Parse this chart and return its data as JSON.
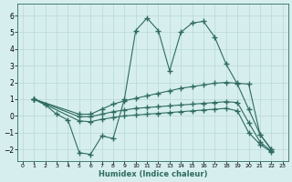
{
  "xlabel": "Humidex (Indice chaleur)",
  "background_color": "#d6eeee",
  "line_color": "#2e6b60",
  "grid_color": "#b8d8d8",
  "xlim": [
    -0.5,
    23.5
  ],
  "ylim": [
    -2.7,
    6.7
  ],
  "xticks": [
    0,
    1,
    2,
    3,
    4,
    5,
    6,
    7,
    8,
    9,
    10,
    11,
    12,
    13,
    14,
    15,
    16,
    17,
    18,
    19,
    20,
    21,
    22,
    23
  ],
  "yticks": [
    -2,
    -1,
    0,
    1,
    2,
    3,
    4,
    5,
    6
  ],
  "line1_x": [
    1,
    2,
    3,
    4,
    5,
    6,
    7,
    8,
    9,
    10,
    11,
    12,
    13,
    14,
    15,
    16,
    17,
    18,
    19,
    20,
    21,
    22
  ],
  "line1_y": [
    1.0,
    0.65,
    0.1,
    -0.25,
    -2.2,
    -2.3,
    -1.2,
    -1.35,
    1.0,
    5.1,
    5.85,
    5.1,
    2.7,
    5.0,
    5.55,
    5.65,
    4.7,
    3.1,
    1.9,
    0.4,
    -1.1,
    -2.0
  ],
  "line2_x": [
    1,
    5,
    6,
    7,
    8,
    9,
    10,
    11,
    12,
    13,
    14,
    15,
    16,
    17,
    18,
    19,
    20,
    21,
    22
  ],
  "line2_y": [
    1.0,
    0.1,
    0.1,
    0.4,
    0.7,
    0.9,
    1.05,
    1.2,
    1.35,
    1.5,
    1.65,
    1.75,
    1.85,
    1.95,
    2.0,
    1.95,
    1.9,
    -1.1,
    -2.0
  ],
  "line3_x": [
    1,
    5,
    6,
    7,
    8,
    9,
    10,
    11,
    12,
    13,
    14,
    15,
    16,
    17,
    18,
    19,
    20,
    21,
    22
  ],
  "line3_y": [
    1.0,
    -0.05,
    -0.05,
    0.1,
    0.25,
    0.35,
    0.45,
    0.5,
    0.55,
    0.6,
    0.65,
    0.7,
    0.75,
    0.8,
    0.85,
    0.8,
    -0.4,
    -1.55,
    -2.1
  ],
  "line4_x": [
    1,
    5,
    6,
    7,
    8,
    9,
    10,
    11,
    12,
    13,
    14,
    15,
    16,
    17,
    18,
    19,
    20,
    21,
    22
  ],
  "line4_y": [
    1.0,
    -0.3,
    -0.35,
    -0.2,
    -0.1,
    0.0,
    0.05,
    0.1,
    0.15,
    0.2,
    0.25,
    0.3,
    0.35,
    0.4,
    0.45,
    0.3,
    -1.0,
    -1.7,
    -2.15
  ]
}
